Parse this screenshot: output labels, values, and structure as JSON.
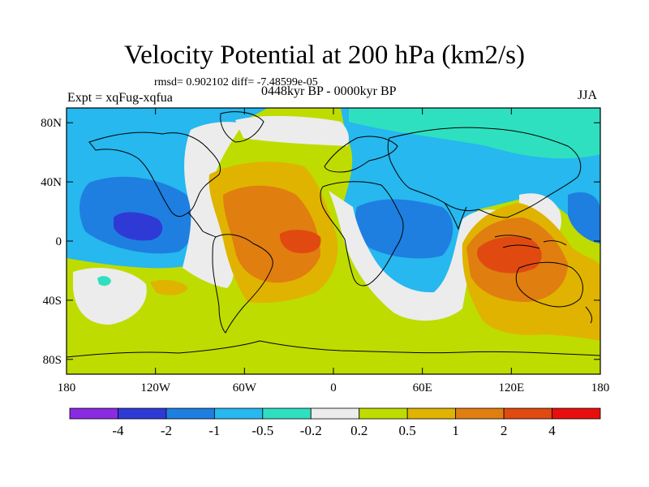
{
  "chart_data": {
    "type": "heatmap",
    "title": "Velocity Potential at 200 hPa (km2/s)",
    "stats_text": "rmsd= 0.902102 diff= -7.48599e-05",
    "left_label": "Expt = xqFug-xqfua",
    "center_label": "0448kyr BP - 0000kyr BP",
    "right_label": "JJA",
    "x_ticks": [
      "180",
      "120W",
      "60W",
      "0",
      "60E",
      "120E",
      "180"
    ],
    "y_ticks": [
      "80N",
      "40N",
      "0",
      "40S",
      "80S"
    ],
    "lon_range": [
      -180,
      180
    ],
    "lat_range": [
      -90,
      90
    ],
    "colorbar_levels": [
      "-4",
      "-2",
      "-1",
      "-0.5",
      "-0.2",
      "0.2",
      "0.5",
      "1",
      "2",
      "4"
    ],
    "colorbar_colors": [
      "#8a2be2",
      "#2f3ad6",
      "#1e7fe0",
      "#26b8ee",
      "#2ee0c0",
      "#ececec",
      "#bedc00",
      "#e0b300",
      "#e07e10",
      "#e04a10",
      "#e80e0e"
    ],
    "features": [
      {
        "name": "west-pacific-low",
        "value_class": "-2 to -4",
        "lon": -135,
        "lat": 8
      },
      {
        "name": "tropical-atlantic-high",
        "value_class": "2 to 4",
        "lon": -20,
        "lat": 0
      },
      {
        "name": "indo-pacific-high",
        "value_class": "2 to 4",
        "lon": 110,
        "lat": -10
      },
      {
        "name": "eurasia-africa-low",
        "value_class": "-0.5 to -1",
        "lon": 45,
        "lat": 10
      }
    ]
  }
}
